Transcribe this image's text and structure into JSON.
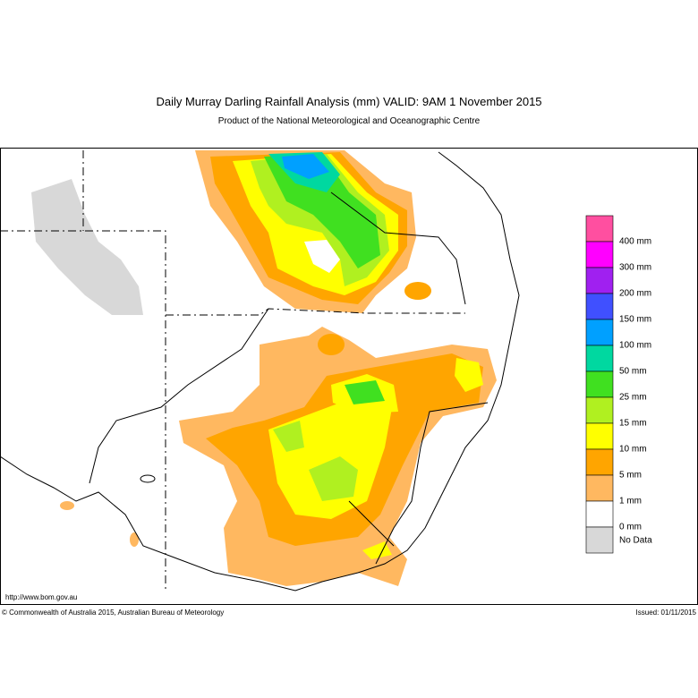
{
  "header": {
    "title": "Daily Murray Darling Rainfall Analysis (mm)  VALID: 9AM  1 November 2015",
    "subtitle": "Product of the National Meteorological and Oceanographic Centre"
  },
  "legend": [
    {
      "label": "400 mm",
      "color": "#ff4fa0"
    },
    {
      "label": "300 mm",
      "color": "#ff00ff"
    },
    {
      "label": "200 mm",
      "color": "#a020f0"
    },
    {
      "label": "150 mm",
      "color": "#4050ff"
    },
    {
      "label": "100 mm",
      "color": "#00a0ff"
    },
    {
      "label": "50 mm",
      "color": "#00d8a0"
    },
    {
      "label": "25 mm",
      "color": "#40e020"
    },
    {
      "label": "15 mm",
      "color": "#b0f020"
    },
    {
      "label": "10 mm",
      "color": "#ffff00"
    },
    {
      "label": "5 mm",
      "color": "#ffa500"
    },
    {
      "label": "1 mm",
      "color": "#ffb860"
    },
    {
      "label": "0 mm",
      "color": "#ffffff"
    },
    {
      "label": "No Data",
      "color": "#d8d8d8"
    }
  ],
  "footer": {
    "url": "http://www.bom.gov.au",
    "copyright": "© Commonwealth of Australia 2015, Australian Bureau of Meteorology",
    "issued": "Issued: 01/11/2015"
  }
}
